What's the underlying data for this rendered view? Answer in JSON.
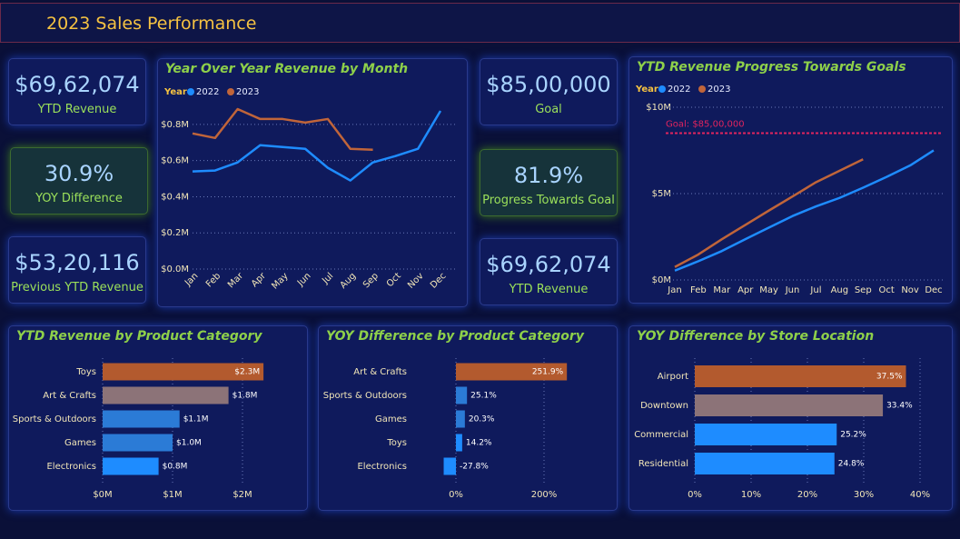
{
  "header": {
    "title": "2023 Sales Performance"
  },
  "kpis": [
    {
      "value": "$69,62,074",
      "label": "YTD Revenue"
    },
    {
      "value": "30.9%",
      "label": "YOY Difference"
    },
    {
      "value": "$53,20,116",
      "label": "Previous YTD Revenue"
    },
    {
      "value": "$85,00,000",
      "label": "Goal"
    },
    {
      "value": "81.9%",
      "label": "Progress Towards Goal"
    },
    {
      "value": "$69,62,074",
      "label": "YTD Revenue"
    }
  ],
  "chart_data": [
    {
      "type": "line",
      "title": "Year Over Year Revenue by Month",
      "legend_title": "Year",
      "categories": [
        "Jan",
        "Feb",
        "Mar",
        "Apr",
        "May",
        "Jun",
        "Jul",
        "Aug",
        "Sep",
        "Oct",
        "Nov",
        "Dec"
      ],
      "series": [
        {
          "name": "2022",
          "color": "#1e8cff",
          "values": [
            540000,
            545000,
            590000,
            685000,
            675000,
            665000,
            560000,
            490000,
            590000,
            625000,
            665000,
            875000
          ]
        },
        {
          "name": "2023",
          "color": "#c0653a",
          "values": [
            750000,
            725000,
            885000,
            830000,
            830000,
            810000,
            830000,
            665000,
            660000,
            null,
            null,
            null
          ]
        }
      ],
      "ylim": [
        0,
        900000
      ],
      "yticks": [
        {
          "value": 0,
          "label": "$0.0M"
        },
        {
          "value": 200000,
          "label": "$0.2M"
        },
        {
          "value": 400000,
          "label": "$0.4M"
        },
        {
          "value": 600000,
          "label": "$0.6M"
        },
        {
          "value": 800000,
          "label": "$0.8M"
        }
      ],
      "grid": true
    },
    {
      "type": "line",
      "title": "YTD Revenue Progress Towards Goals",
      "legend_title": "Year",
      "categories": [
        "Jan",
        "Feb",
        "Mar",
        "Apr",
        "May",
        "Jun",
        "Jul",
        "Aug",
        "Sep",
        "Oct",
        "Nov",
        "Dec"
      ],
      "series": [
        {
          "name": "2022",
          "color": "#1e8cff",
          "values": [
            540000,
            1085000,
            1675000,
            2360000,
            3035000,
            3700000,
            4260000,
            4750000,
            5340000,
            5965000,
            6630000,
            7505000
          ]
        },
        {
          "name": "2023",
          "color": "#c0653a",
          "values": [
            750000,
            1475000,
            2360000,
            3190000,
            4020000,
            4830000,
            5660000,
            6325000,
            6985000,
            null,
            null,
            null
          ]
        }
      ],
      "ylim": [
        0,
        10000000
      ],
      "yticks": [
        {
          "value": 0,
          "label": "$0M"
        },
        {
          "value": 5000000,
          "label": "$5M"
        },
        {
          "value": 10000000,
          "label": "$10M"
        }
      ],
      "goal": {
        "label": "Goal: $85,00,000",
        "value": 8500000,
        "color": "#e0245e"
      },
      "grid": true
    },
    {
      "type": "barh",
      "title": "YTD Revenue by Product Category",
      "categories": [
        "Toys",
        "Art & Crafts",
        "Sports & Outdoors",
        "Games",
        "Electronics"
      ],
      "values": [
        2300000,
        1800000,
        1100000,
        1000000,
        800000
      ],
      "value_labels": [
        "$2.3M",
        "$1.8M",
        "$1.1M",
        "$1.0M",
        "$0.8M"
      ],
      "colors": [
        "#b35a2e",
        "#8c7378",
        "#2b7bd6",
        "#2b7bd6",
        "#1e8cff"
      ],
      "xlim": [
        0,
        2800000
      ],
      "xticks": [
        {
          "value": 0,
          "label": "$0M"
        },
        {
          "value": 1000000,
          "label": "$1M"
        },
        {
          "value": 2000000,
          "label": "$2M"
        }
      ],
      "grid": true
    },
    {
      "type": "barh",
      "title": "YOY Difference by Product Category",
      "categories": [
        "Art & Crafts",
        "Sports & Outdoors",
        "Games",
        "Toys",
        "Electronics"
      ],
      "values": [
        251.9,
        25.1,
        20.3,
        14.2,
        -27.8
      ],
      "value_labels": [
        "251.9%",
        "25.1%",
        "20.3%",
        "14.2%",
        "-27.8%"
      ],
      "colors": [
        "#b35a2e",
        "#2b7bd6",
        "#2b7bd6",
        "#1e8cff",
        "#1e8cff"
      ],
      "xlim": [
        -60,
        300
      ],
      "xticks": [
        {
          "value": 0,
          "label": "0%"
        },
        {
          "value": 200,
          "label": "200%"
        }
      ],
      "grid": true
    },
    {
      "type": "barh",
      "title": "YOY Difference by Store Location",
      "categories": [
        "Airport",
        "Downtown",
        "Commercial",
        "Residential"
      ],
      "values": [
        37.5,
        33.4,
        25.2,
        24.8
      ],
      "value_labels": [
        "37.5%",
        "33.4%",
        "25.2%",
        "24.8%"
      ],
      "colors": [
        "#b35a2e",
        "#8c7378",
        "#1e8cff",
        "#1e8cff"
      ],
      "xlim": [
        0,
        44
      ],
      "xticks": [
        {
          "value": 0,
          "label": "0%"
        },
        {
          "value": 10,
          "label": "10%"
        },
        {
          "value": 20,
          "label": "20%"
        },
        {
          "value": 30,
          "label": "30%"
        },
        {
          "value": 40,
          "label": "40%"
        }
      ],
      "grid": true
    }
  ]
}
